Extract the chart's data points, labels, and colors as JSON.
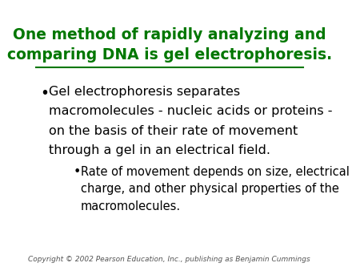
{
  "bg_color": "#ffffff",
  "title_line1": "One method of rapidly analyzing and",
  "title_line2": "comparing DNA is gel electrophoresis.",
  "title_color": "#007700",
  "title_fontsize": 13.5,
  "underline_color": "#007700",
  "bullet1_lines": [
    "Gel electrophoresis separates",
    "macromolecules - nucleic acids or proteins -",
    "on the basis of their rate of movement",
    "through a gel in an electrical field."
  ],
  "bullet1_color": "#000000",
  "bullet1_fontsize": 11.5,
  "subbullet_lines": [
    "Rate of movement depends on size, electrical",
    "charge, and other physical properties of the",
    "macromolecules."
  ],
  "subbullet_color": "#000000",
  "subbullet_fontsize": 10.5,
  "copyright": "Copyright © 2002 Pearson Education, Inc., publishing as Benjamin Cummings",
  "copyright_fontsize": 6.5,
  "copyright_color": "#555555"
}
